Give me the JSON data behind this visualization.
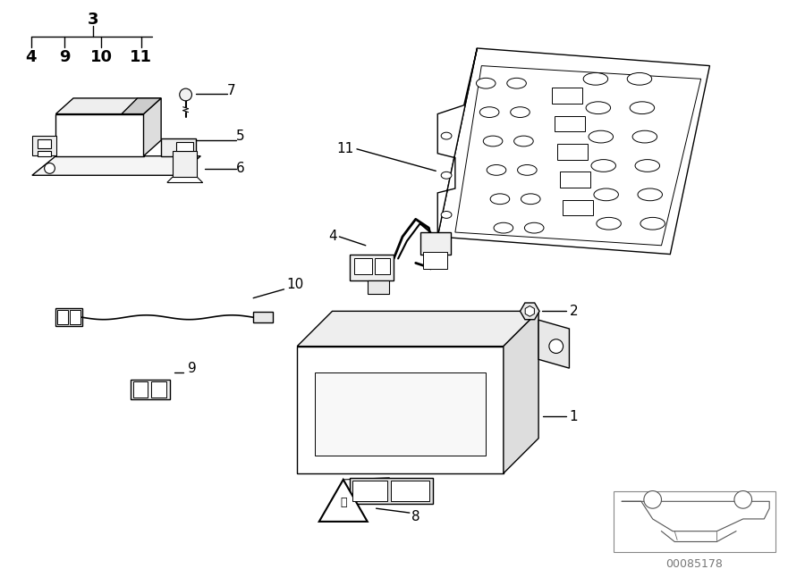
{
  "bg_color": "#ffffff",
  "line_color": "#000000",
  "diagram_id": "00085178",
  "font_bold": 13,
  "font_label": 11,
  "font_id": 9
}
